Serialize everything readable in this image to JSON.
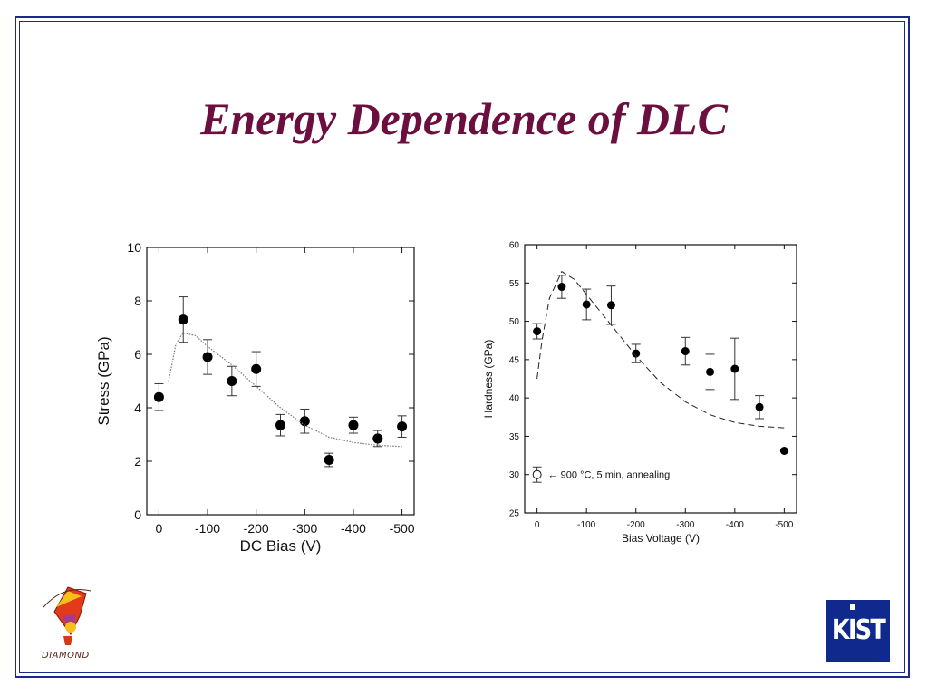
{
  "slide": {
    "title": "Energy Dependence of DLC",
    "logo_left_text": "DIAMOND",
    "logo_right_text": "KIST"
  },
  "colors": {
    "title": "#6b0f3f",
    "frame": "#1a2a8a",
    "kist_bg": "#0f2a8c"
  },
  "chart_data": [
    {
      "type": "scatter",
      "xlabel": "DC Bias (V)",
      "ylabel": "Stress (GPa)",
      "xlim": [
        25,
        -525
      ],
      "ylim": [
        0,
        10
      ],
      "x_ticks": [
        0,
        -100,
        -200,
        -300,
        -400,
        -500
      ],
      "x_tick_labels": [
        "0",
        "-100",
        "-200",
        "-300",
        "-400",
        "-500"
      ],
      "y_ticks": [
        0,
        2,
        4,
        6,
        8,
        10
      ],
      "y_tick_labels": [
        "0",
        "2",
        "4",
        "6",
        "8",
        "10"
      ],
      "series": [
        {
          "marker": "filled-circle",
          "points": [
            {
              "x": 0,
              "y": 4.4,
              "err": 0.5
            },
            {
              "x": -50,
              "y": 7.3,
              "err": 0.85
            },
            {
              "x": -100,
              "y": 5.9,
              "err": 0.65
            },
            {
              "x": -150,
              "y": 5.0,
              "err": 0.55
            },
            {
              "x": -200,
              "y": 5.45,
              "err": 0.65
            },
            {
              "x": -250,
              "y": 3.35,
              "err": 0.4
            },
            {
              "x": -300,
              "y": 3.5,
              "err": 0.45
            },
            {
              "x": -350,
              "y": 2.05,
              "err": 0.25
            },
            {
              "x": -400,
              "y": 3.35,
              "err": 0.3
            },
            {
              "x": -450,
              "y": 2.85,
              "err": 0.3
            },
            {
              "x": -500,
              "y": 3.3,
              "err": 0.4
            }
          ]
        },
        {
          "line_style": "dotted",
          "points": [
            {
              "x": -20,
              "y": 5.0
            },
            {
              "x": -35,
              "y": 6.4
            },
            {
              "x": -50,
              "y": 6.8
            },
            {
              "x": -75,
              "y": 6.7
            },
            {
              "x": -100,
              "y": 6.3
            },
            {
              "x": -150,
              "y": 5.6
            },
            {
              "x": -200,
              "y": 4.8
            },
            {
              "x": -250,
              "y": 4.0
            },
            {
              "x": -300,
              "y": 3.35
            },
            {
              "x": -350,
              "y": 2.9
            },
            {
              "x": -400,
              "y": 2.7
            },
            {
              "x": -450,
              "y": 2.6
            },
            {
              "x": -500,
              "y": 2.55
            }
          ]
        }
      ]
    },
    {
      "type": "scatter",
      "xlabel": "Bias Voltage (V)",
      "ylabel": "Hardness (GPa)",
      "xlim": [
        25,
        -525
      ],
      "ylim": [
        25,
        60
      ],
      "x_ticks": [
        0,
        -100,
        -200,
        -300,
        -400,
        -500
      ],
      "x_tick_labels": [
        "0",
        "-100",
        "-200",
        "-300",
        "-400",
        "-500"
      ],
      "y_ticks": [
        25,
        30,
        35,
        40,
        45,
        50,
        55,
        60
      ],
      "y_tick_labels": [
        "25",
        "30",
        "35",
        "40",
        "45",
        "50",
        "55",
        "60"
      ],
      "annotation": {
        "text": "← 900 °C, 5 min, annealing",
        "x": 0,
        "y": 30
      },
      "series": [
        {
          "marker": "filled-circle",
          "points": [
            {
              "x": 0,
              "y": 48.7,
              "err": 1.0
            },
            {
              "x": -50,
              "y": 54.5,
              "err": 1.5
            },
            {
              "x": -100,
              "y": 52.2,
              "err": 2.0
            },
            {
              "x": -150,
              "y": 52.1,
              "err": 2.5
            },
            {
              "x": -200,
              "y": 45.8,
              "err": 1.2
            },
            {
              "x": -300,
              "y": 46.1,
              "err": 1.8
            },
            {
              "x": -350,
              "y": 43.4,
              "err": 2.3
            },
            {
              "x": -400,
              "y": 43.8,
              "err": 4.0
            },
            {
              "x": -450,
              "y": 38.8,
              "err": 1.5
            },
            {
              "x": -500,
              "y": 33.1,
              "err": 0
            }
          ]
        },
        {
          "marker": "open-circle",
          "points": [
            {
              "x": 0,
              "y": 30.0,
              "err": 1.0
            }
          ]
        },
        {
          "line_style": "dashed",
          "points": [
            {
              "x": 0,
              "y": 42.5
            },
            {
              "x": -10,
              "y": 47.5
            },
            {
              "x": -25,
              "y": 53.0
            },
            {
              "x": -50,
              "y": 56.5
            },
            {
              "x": -75,
              "y": 55.5
            },
            {
              "x": -100,
              "y": 53.5
            },
            {
              "x": -150,
              "y": 49.5
            },
            {
              "x": -200,
              "y": 45.5
            },
            {
              "x": -250,
              "y": 42.0
            },
            {
              "x": -300,
              "y": 39.5
            },
            {
              "x": -350,
              "y": 37.8
            },
            {
              "x": -400,
              "y": 36.8
            },
            {
              "x": -450,
              "y": 36.3
            },
            {
              "x": -500,
              "y": 36.1
            }
          ]
        }
      ]
    }
  ]
}
